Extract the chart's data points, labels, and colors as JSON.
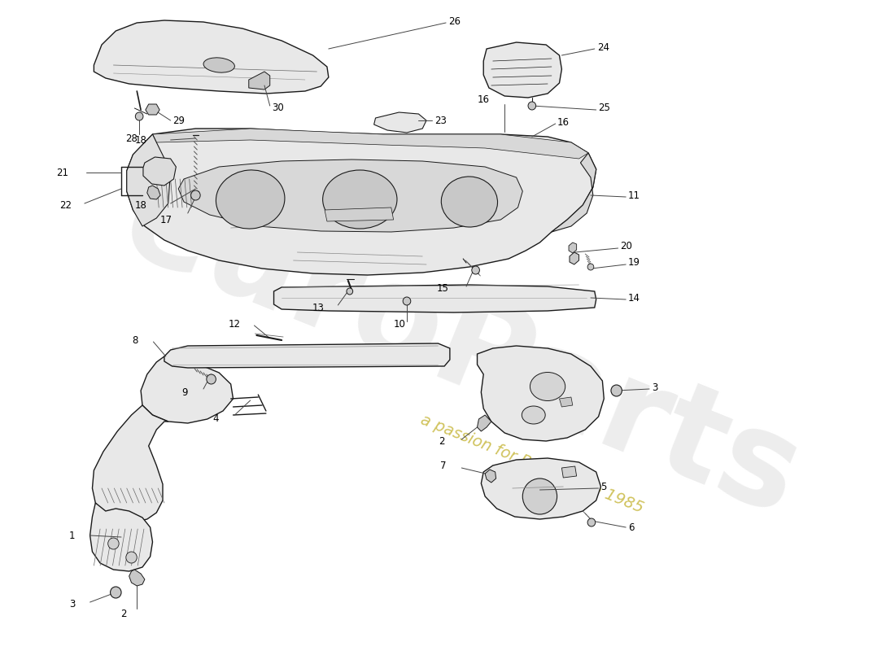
{
  "bg_color": "#ffffff",
  "line_color": "#1a1a1a",
  "fill_part": "#e8e8e8",
  "fill_dark": "#c8c8c8",
  "wm1_color": "#d8d8d8",
  "wm2_color": "#c8b840",
  "label_fs": 8.5,
  "lw_main": 1.0,
  "lw_thin": 0.6
}
